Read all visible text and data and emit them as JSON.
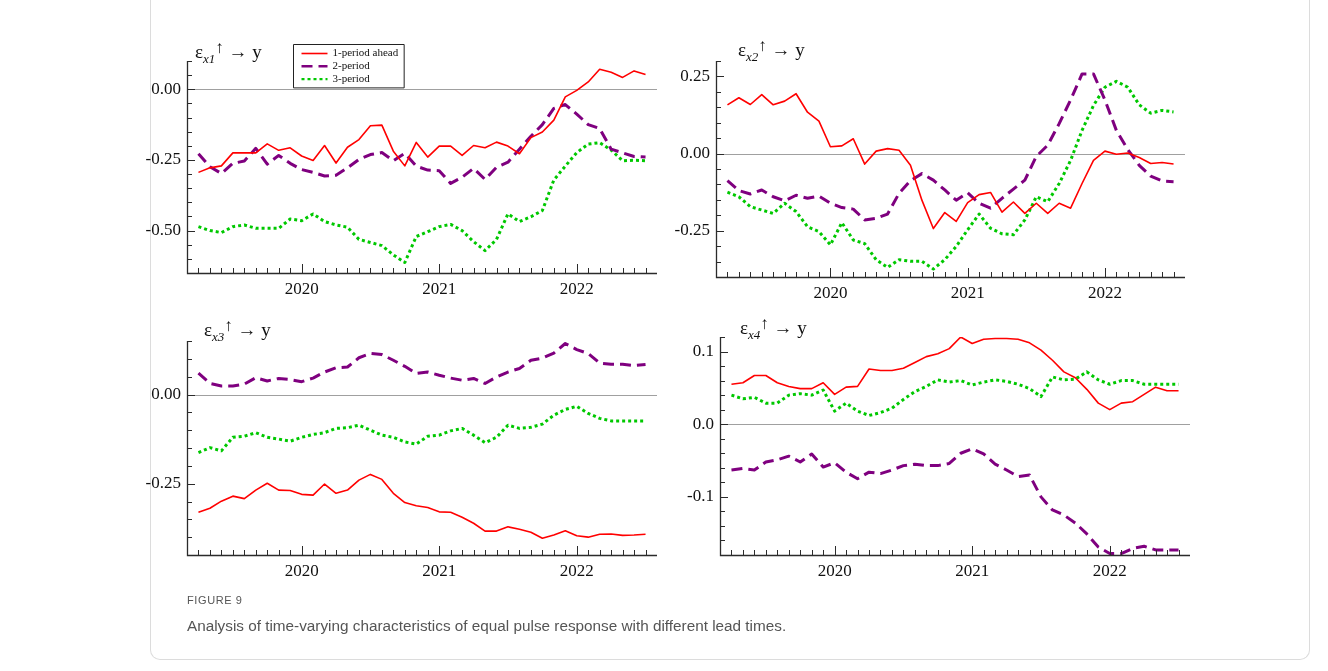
{
  "chart_data": [
    {
      "type": "line",
      "title": "ε$_{x1}$$^{↑}$ → y",
      "legend": "top left",
      "x": [
        "2019-04",
        "2019-05",
        "2019-06",
        "2019-07",
        "2019-08",
        "2019-09",
        "2019-10",
        "2019-11",
        "2019-12",
        "2020-01",
        "2020-02",
        "2020-03",
        "2020-04",
        "2020-05",
        "2020-06",
        "2020-07",
        "2020-08",
        "2020-09",
        "2020-10",
        "2020-11",
        "2020-12",
        "2021-01",
        "2021-02",
        "2021-03",
        "2021-04",
        "2021-05",
        "2021-06",
        "2021-07",
        "2021-08",
        "2021-09",
        "2021-10",
        "2021-11",
        "2021-12",
        "2022-01",
        "2022-02",
        "2022-03",
        "2022-04",
        "2022-05",
        "2022-06",
        "2022-07"
      ],
      "xlim": [
        "2019-03",
        "2022-08"
      ],
      "xticks": [
        {
          "value": "2019-04",
          "label": null
        },
        {
          "value": "2019-05",
          "label": null
        },
        {
          "value": "2019-06",
          "label": null
        },
        {
          "value": "2019-07",
          "label": null
        },
        {
          "value": "2019-08",
          "label": null
        },
        {
          "value": "2019-09",
          "label": null
        },
        {
          "value": "2019-10",
          "label": null
        },
        {
          "value": "2019-11",
          "label": null
        },
        {
          "value": "2019-12",
          "label": null
        },
        "2020",
        {
          "value": "2020-02",
          "label": null
        },
        {
          "value": "2020-03",
          "label": null
        },
        {
          "value": "2020-04",
          "label": null
        },
        {
          "value": "2020-05",
          "label": null
        },
        {
          "value": "2020-06",
          "label": null
        },
        {
          "value": "2020-07",
          "label": null
        },
        {
          "value": "2020-08",
          "label": null
        },
        {
          "value": "2020-09",
          "label": null
        },
        {
          "value": "2020-10",
          "label": null
        },
        {
          "value": "2020-11",
          "label": null
        },
        {
          "value": "2020-12",
          "label": null
        },
        "2021",
        {
          "value": "2021-02",
          "label": null
        },
        {
          "value": "2021-03",
          "label": null
        },
        {
          "value": "2021-04",
          "label": null
        },
        {
          "value": "2021-05",
          "label": null
        },
        {
          "value": "2021-06",
          "label": null
        },
        {
          "value": "2021-07",
          "label": null
        },
        {
          "value": "2021-08",
          "label": null
        },
        {
          "value": "2021-09",
          "label": null
        },
        {
          "value": "2021-10",
          "label": null
        },
        {
          "value": "2021-11",
          "label": null
        },
        {
          "value": "2021-12",
          "label": null
        },
        "2022",
        {
          "value": "2022-02",
          "label": null
        },
        {
          "value": "2022-03",
          "label": null
        },
        {
          "value": "2022-04",
          "label": null
        },
        {
          "value": "2022-05",
          "label": null
        },
        {
          "value": "2022-06",
          "label": null
        },
        {
          "value": "2022-07",
          "label": null
        }
      ],
      "ylim": [
        -0.65,
        0.1
      ],
      "yticks": [
        {
          "value": 0.1,
          "label": null
        },
        {
          "value": 0.05,
          "label": null
        },
        {
          "value": 0,
          "label": "0.00"
        },
        {
          "value": -0.05,
          "label": null
        },
        {
          "value": -0.1,
          "label": null
        },
        {
          "value": -0.15,
          "label": null
        },
        {
          "value": -0.2,
          "label": null
        },
        {
          "value": -0.25,
          "label": "-0.25"
        },
        {
          "value": -0.3,
          "label": null
        },
        {
          "value": -0.35,
          "label": null
        },
        {
          "value": -0.4,
          "label": null
        },
        {
          "value": -0.45,
          "label": null
        },
        {
          "value": -0.5,
          "label": "-0.50"
        },
        {
          "value": -0.55,
          "label": null
        },
        {
          "value": -0.6,
          "label": null
        }
      ],
      "ref_lines": [
        {
          "axis": "y",
          "value": 0,
          "color": "#a0a0a0"
        }
      ],
      "series": [
        {
          "name": "1-period ahead",
          "color": "#ff0000",
          "line_style": "solid",
          "values": [
            -0.294,
            -0.278,
            -0.271,
            -0.225,
            -0.225,
            -0.225,
            -0.193,
            -0.216,
            -0.207,
            -0.236,
            -0.252,
            -0.199,
            -0.261,
            -0.205,
            -0.178,
            -0.129,
            -0.127,
            -0.219,
            -0.271,
            -0.188,
            -0.24,
            -0.201,
            -0.201,
            -0.234,
            -0.199,
            -0.207,
            -0.187,
            -0.201,
            -0.228,
            -0.171,
            -0.151,
            -0.109,
            -0.027,
            -0.004,
            0.026,
            0.071,
            0.06,
            0.042,
            0.065,
            0.052
          ]
        },
        {
          "name": "2-period",
          "color": "#7f007f",
          "line_style": "dashed",
          "values": [
            -0.228,
            -0.274,
            -0.298,
            -0.262,
            -0.254,
            -0.209,
            -0.265,
            -0.234,
            -0.262,
            -0.284,
            -0.294,
            -0.307,
            -0.304,
            -0.278,
            -0.248,
            -0.231,
            -0.224,
            -0.253,
            -0.227,
            -0.272,
            -0.286,
            -0.288,
            -0.333,
            -0.311,
            -0.28,
            -0.319,
            -0.276,
            -0.258,
            -0.212,
            -0.166,
            -0.125,
            -0.068,
            -0.054,
            -0.088,
            -0.125,
            -0.139,
            -0.212,
            -0.225,
            -0.238,
            -0.24
          ]
        },
        {
          "name": "3-period",
          "color": "#00c800",
          "line_style": "dotted",
          "values": [
            -0.486,
            -0.5,
            -0.507,
            -0.486,
            -0.48,
            -0.492,
            -0.492,
            -0.492,
            -0.459,
            -0.465,
            -0.441,
            -0.468,
            -0.48,
            -0.488,
            -0.531,
            -0.542,
            -0.553,
            -0.586,
            -0.613,
            -0.521,
            -0.504,
            -0.486,
            -0.478,
            -0.5,
            -0.539,
            -0.571,
            -0.531,
            -0.441,
            -0.468,
            -0.451,
            -0.429,
            -0.321,
            -0.272,
            -0.224,
            -0.194,
            -0.189,
            -0.215,
            -0.253,
            -0.251,
            -0.253
          ]
        }
      ]
    },
    {
      "type": "line",
      "title": "ε$_{x2}$$^{↑}$ → y",
      "x": [
        "2019-04",
        "2019-05",
        "2019-06",
        "2019-07",
        "2019-08",
        "2019-09",
        "2019-10",
        "2019-11",
        "2019-12",
        "2020-01",
        "2020-02",
        "2020-03",
        "2020-04",
        "2020-05",
        "2020-06",
        "2020-07",
        "2020-08",
        "2020-09",
        "2020-10",
        "2020-11",
        "2020-12",
        "2021-01",
        "2021-02",
        "2021-03",
        "2021-04",
        "2021-05",
        "2021-06",
        "2021-07",
        "2021-08",
        "2021-09",
        "2021-10",
        "2021-11",
        "2021-12",
        "2022-01",
        "2022-02",
        "2022-03",
        "2022-04",
        "2022-05",
        "2022-06",
        "2022-07"
      ],
      "xlim": [
        "2019-03",
        "2022-08"
      ],
      "xticks": [
        {
          "value": "2019-04",
          "label": null
        },
        {
          "value": "2019-05",
          "label": null
        },
        {
          "value": "2019-06",
          "label": null
        },
        {
          "value": "2019-07",
          "label": null
        },
        {
          "value": "2019-08",
          "label": null
        },
        {
          "value": "2019-09",
          "label": null
        },
        {
          "value": "2019-10",
          "label": null
        },
        {
          "value": "2019-11",
          "label": null
        },
        {
          "value": "2019-12",
          "label": null
        },
        "2020",
        {
          "value": "2020-02",
          "label": null
        },
        {
          "value": "2020-03",
          "label": null
        },
        {
          "value": "2020-04",
          "label": null
        },
        {
          "value": "2020-05",
          "label": null
        },
        {
          "value": "2020-06",
          "label": null
        },
        {
          "value": "2020-07",
          "label": null
        },
        {
          "value": "2020-08",
          "label": null
        },
        {
          "value": "2020-09",
          "label": null
        },
        {
          "value": "2020-10",
          "label": null
        },
        {
          "value": "2020-11",
          "label": null
        },
        {
          "value": "2020-12",
          "label": null
        },
        "2021",
        {
          "value": "2021-02",
          "label": null
        },
        {
          "value": "2021-03",
          "label": null
        },
        {
          "value": "2021-04",
          "label": null
        },
        {
          "value": "2021-05",
          "label": null
        },
        {
          "value": "2021-06",
          "label": null
        },
        {
          "value": "2021-07",
          "label": null
        },
        {
          "value": "2021-08",
          "label": null
        },
        {
          "value": "2021-09",
          "label": null
        },
        {
          "value": "2021-10",
          "label": null
        },
        {
          "value": "2021-11",
          "label": null
        },
        {
          "value": "2021-12",
          "label": null
        },
        "2022",
        {
          "value": "2022-02",
          "label": null
        },
        {
          "value": "2022-03",
          "label": null
        },
        {
          "value": "2022-04",
          "label": null
        },
        {
          "value": "2022-05",
          "label": null
        },
        {
          "value": "2022-06",
          "label": null
        },
        {
          "value": "2022-07",
          "label": null
        }
      ],
      "ylim": [
        -0.4,
        0.3
      ],
      "yticks": [
        {
          "value": 0.3,
          "label": null
        },
        {
          "value": 0.25,
          "label": "0.25"
        },
        {
          "value": 0.2,
          "label": null
        },
        {
          "value": 0.15,
          "label": null
        },
        {
          "value": 0.1,
          "label": null
        },
        {
          "value": 0.05,
          "label": null
        },
        {
          "value": 0,
          "label": "0.00"
        },
        {
          "value": -0.05,
          "label": null
        },
        {
          "value": -0.1,
          "label": null
        },
        {
          "value": -0.15,
          "label": null
        },
        {
          "value": -0.2,
          "label": null
        },
        {
          "value": -0.25,
          "label": "-0.25"
        },
        {
          "value": -0.3,
          "label": null
        },
        {
          "value": -0.35,
          "label": null
        }
      ],
      "ref_lines": [
        {
          "axis": "y",
          "value": 0,
          "color": "#a0a0a0"
        }
      ],
      "series": [
        {
          "color": "#ff0000",
          "line_style": "solid",
          "values": [
            0.158,
            0.181,
            0.159,
            0.191,
            0.158,
            0.17,
            0.194,
            0.134,
            0.105,
            0.022,
            0.025,
            0.048,
            -0.034,
            0.008,
            0.016,
            0.011,
            -0.038,
            -0.151,
            -0.243,
            -0.191,
            -0.22,
            -0.159,
            -0.133,
            -0.126,
            -0.19,
            -0.157,
            -0.194,
            -0.161,
            -0.194,
            -0.161,
            -0.177,
            -0.097,
            -0.022,
            0.008,
            -0.002,
            0.002,
            -0.013,
            -0.032,
            -0.029,
            -0.034
          ]
        },
        {
          "color": "#7f007f",
          "line_style": "dashed",
          "values": [
            -0.088,
            -0.12,
            -0.131,
            -0.118,
            -0.14,
            -0.153,
            -0.135,
            -0.145,
            -0.138,
            -0.161,
            -0.175,
            -0.18,
            -0.215,
            -0.21,
            -0.196,
            -0.129,
            -0.088,
            -0.065,
            -0.086,
            -0.118,
            -0.151,
            -0.127,
            -0.161,
            -0.177,
            -0.145,
            -0.115,
            -0.086,
            -0.009,
            0.027,
            0.097,
            0.174,
            0.258,
            0.258,
            0.174,
            0.075,
            0.013,
            -0.038,
            -0.073,
            -0.089,
            -0.091
          ]
        },
        {
          "color": "#00c800",
          "line_style": "dotted",
          "values": [
            -0.125,
            -0.14,
            -0.172,
            -0.183,
            -0.194,
            -0.161,
            -0.188,
            -0.237,
            -0.253,
            -0.296,
            -0.224,
            -0.28,
            -0.292,
            -0.344,
            -0.369,
            -0.344,
            -0.349,
            -0.349,
            -0.374,
            -0.344,
            -0.301,
            -0.247,
            -0.196,
            -0.242,
            -0.26,
            -0.263,
            -0.215,
            -0.14,
            -0.156,
            -0.097,
            -0.022,
            0.075,
            0.156,
            0.215,
            0.234,
            0.215,
            0.158,
            0.131,
            0.14,
            0.135
          ]
        }
      ]
    },
    {
      "type": "line",
      "title": "ε$_{x3}$$^{↑}$ → y",
      "x": [
        "2019-04",
        "2019-05",
        "2019-06",
        "2019-07",
        "2019-08",
        "2019-09",
        "2019-10",
        "2019-11",
        "2019-12",
        "2020-01",
        "2020-02",
        "2020-03",
        "2020-04",
        "2020-05",
        "2020-06",
        "2020-07",
        "2020-08",
        "2020-09",
        "2020-10",
        "2020-11",
        "2020-12",
        "2021-01",
        "2021-02",
        "2021-03",
        "2021-04",
        "2021-05",
        "2021-06",
        "2021-07",
        "2021-08",
        "2021-09",
        "2021-10",
        "2021-11",
        "2021-12",
        "2022-01",
        "2022-02",
        "2022-03",
        "2022-04",
        "2022-05",
        "2022-06",
        "2022-07"
      ],
      "xlim": [
        "2019-03",
        "2022-08"
      ],
      "xticks": [
        {
          "value": "2019-04",
          "label": null
        },
        {
          "value": "2019-05",
          "label": null
        },
        {
          "value": "2019-06",
          "label": null
        },
        {
          "value": "2019-07",
          "label": null
        },
        {
          "value": "2019-08",
          "label": null
        },
        {
          "value": "2019-09",
          "label": null
        },
        {
          "value": "2019-10",
          "label": null
        },
        {
          "value": "2019-11",
          "label": null
        },
        {
          "value": "2019-12",
          "label": null
        },
        "2020",
        {
          "value": "2020-02",
          "label": null
        },
        {
          "value": "2020-03",
          "label": null
        },
        {
          "value": "2020-04",
          "label": null
        },
        {
          "value": "2020-05",
          "label": null
        },
        {
          "value": "2020-06",
          "label": null
        },
        {
          "value": "2020-07",
          "label": null
        },
        {
          "value": "2020-08",
          "label": null
        },
        {
          "value": "2020-09",
          "label": null
        },
        {
          "value": "2020-10",
          "label": null
        },
        {
          "value": "2020-11",
          "label": null
        },
        {
          "value": "2020-12",
          "label": null
        },
        "2021",
        {
          "value": "2021-02",
          "label": null
        },
        {
          "value": "2021-03",
          "label": null
        },
        {
          "value": "2021-04",
          "label": null
        },
        {
          "value": "2021-05",
          "label": null
        },
        {
          "value": "2021-06",
          "label": null
        },
        {
          "value": "2021-07",
          "label": null
        },
        {
          "value": "2021-08",
          "label": null
        },
        {
          "value": "2021-09",
          "label": null
        },
        {
          "value": "2021-10",
          "label": null
        },
        {
          "value": "2021-11",
          "label": null
        },
        {
          "value": "2021-12",
          "label": null
        },
        "2022",
        {
          "value": "2022-02",
          "label": null
        },
        {
          "value": "2022-03",
          "label": null
        },
        {
          "value": "2022-04",
          "label": null
        },
        {
          "value": "2022-05",
          "label": null
        },
        {
          "value": "2022-06",
          "label": null
        },
        {
          "value": "2022-07",
          "label": null
        }
      ],
      "ylim": [
        -0.45,
        0.15
      ],
      "yticks": [
        {
          "value": 0.15,
          "label": null
        },
        {
          "value": 0.1,
          "label": null
        },
        {
          "value": 0.05,
          "label": null
        },
        {
          "value": 0,
          "label": "0.00"
        },
        {
          "value": -0.05,
          "label": null
        },
        {
          "value": -0.1,
          "label": null
        },
        {
          "value": -0.15,
          "label": null
        },
        {
          "value": -0.2,
          "label": null
        },
        {
          "value": -0.25,
          "label": "-0.25"
        },
        {
          "value": -0.3,
          "label": null
        },
        {
          "value": -0.35,
          "label": null
        },
        {
          "value": -0.4,
          "label": null
        }
      ],
      "ref_lines": [
        {
          "axis": "y",
          "value": 0,
          "color": "#a0a0a0"
        }
      ],
      "annotations": [
        "FIGURE 9",
        "Analysis of time-varying characteristics of equal pulse response with different lead times."
      ],
      "series": [
        {
          "color": "#ff0000",
          "line_style": "solid",
          "values": [
            -0.33,
            -0.319,
            -0.299,
            -0.285,
            -0.292,
            -0.268,
            -0.249,
            -0.268,
            -0.269,
            -0.28,
            -0.282,
            -0.251,
            -0.277,
            -0.268,
            -0.24,
            -0.224,
            -0.238,
            -0.277,
            -0.303,
            -0.312,
            -0.317,
            -0.329,
            -0.33,
            -0.344,
            -0.361,
            -0.383,
            -0.383,
            -0.371,
            -0.378,
            -0.386,
            -0.403,
            -0.394,
            -0.382,
            -0.396,
            -0.4,
            -0.392,
            -0.391,
            -0.395,
            -0.394,
            -0.392
          ]
        },
        {
          "color": "#7f007f",
          "line_style": "dashed",
          "values": [
            0.06,
            0.031,
            0.024,
            0.024,
            0.029,
            0.047,
            0.038,
            0.045,
            0.042,
            0.036,
            0.046,
            0.063,
            0.075,
            0.077,
            0.103,
            0.115,
            0.112,
            0.096,
            0.079,
            0.059,
            0.063,
            0.054,
            0.046,
            0.04,
            0.045,
            0.031,
            0.049,
            0.063,
            0.073,
            0.096,
            0.102,
            0.116,
            0.143,
            0.126,
            0.115,
            0.088,
            0.085,
            0.085,
            0.081,
            0.084
          ]
        },
        {
          "color": "#00c800",
          "line_style": "dotted",
          "values": [
            -0.163,
            -0.149,
            -0.158,
            -0.12,
            -0.117,
            -0.107,
            -0.12,
            -0.125,
            -0.131,
            -0.12,
            -0.112,
            -0.107,
            -0.095,
            -0.093,
            -0.086,
            -0.1,
            -0.114,
            -0.12,
            -0.133,
            -0.139,
            -0.117,
            -0.114,
            -0.102,
            -0.095,
            -0.114,
            -0.135,
            -0.12,
            -0.086,
            -0.095,
            -0.092,
            -0.083,
            -0.058,
            -0.042,
            -0.033,
            -0.053,
            -0.067,
            -0.074,
            -0.074,
            -0.074,
            -0.074
          ]
        }
      ]
    },
    {
      "type": "line",
      "title": "ε$_{x4}$$^{↑}$ → y",
      "x": [
        "2019-04",
        "2019-05",
        "2019-06",
        "2019-07",
        "2019-08",
        "2019-09",
        "2019-10",
        "2019-11",
        "2019-12",
        "2020-01",
        "2020-02",
        "2020-03",
        "2020-04",
        "2020-05",
        "2020-06",
        "2020-07",
        "2020-08",
        "2020-09",
        "2020-10",
        "2020-11",
        "2020-12",
        "2021-01",
        "2021-02",
        "2021-03",
        "2021-04",
        "2021-05",
        "2021-06",
        "2021-07",
        "2021-08",
        "2021-09",
        "2021-10",
        "2021-11",
        "2021-12",
        "2022-01",
        "2022-02",
        "2022-03",
        "2022-04",
        "2022-05",
        "2022-06",
        "2022-07"
      ],
      "xlim": [
        "2019-03",
        "2022-08"
      ],
      "xticks": [
        {
          "value": "2019-04",
          "label": null
        },
        {
          "value": "2019-05",
          "label": null
        },
        {
          "value": "2019-06",
          "label": null
        },
        {
          "value": "2019-07",
          "label": null
        },
        {
          "value": "2019-08",
          "label": null
        },
        {
          "value": "2019-09",
          "label": null
        },
        {
          "value": "2019-10",
          "label": null
        },
        {
          "value": "2019-11",
          "label": null
        },
        {
          "value": "2019-12",
          "label": null
        },
        "2020",
        {
          "value": "2020-02",
          "label": null
        },
        {
          "value": "2020-03",
          "label": null
        },
        {
          "value": "2020-04",
          "label": null
        },
        {
          "value": "2020-05",
          "label": null
        },
        {
          "value": "2020-06",
          "label": null
        },
        {
          "value": "2020-07",
          "label": null
        },
        {
          "value": "2020-08",
          "label": null
        },
        {
          "value": "2020-09",
          "label": null
        },
        {
          "value": "2020-10",
          "label": null
        },
        {
          "value": "2020-11",
          "label": null
        },
        {
          "value": "2020-12",
          "label": null
        },
        "2021",
        {
          "value": "2021-02",
          "label": null
        },
        {
          "value": "2021-03",
          "label": null
        },
        {
          "value": "2021-04",
          "label": null
        },
        {
          "value": "2021-05",
          "label": null
        },
        {
          "value": "2021-06",
          "label": null
        },
        {
          "value": "2021-07",
          "label": null
        },
        {
          "value": "2021-08",
          "label": null
        },
        {
          "value": "2021-09",
          "label": null
        },
        {
          "value": "2021-10",
          "label": null
        },
        {
          "value": "2021-11",
          "label": null
        },
        {
          "value": "2021-12",
          "label": null
        },
        "2022",
        {
          "value": "2022-02",
          "label": null
        },
        {
          "value": "2022-03",
          "label": null
        },
        {
          "value": "2022-04",
          "label": null
        },
        {
          "value": "2022-05",
          "label": null
        },
        {
          "value": "2022-06",
          "label": null
        },
        {
          "value": "2022-07",
          "label": null
        }
      ],
      "ylim": [
        -0.18,
        0.12
      ],
      "yticks": [
        {
          "value": 0.12,
          "label": null
        },
        0.1,
        {
          "value": 0.08,
          "label": null
        },
        {
          "value": 0.06,
          "label": null
        },
        {
          "value": 0.04,
          "label": null
        },
        {
          "value": 0.02,
          "label": null
        },
        {
          "value": 0,
          "label": "0.0"
        },
        {
          "value": -0.02,
          "label": null
        },
        {
          "value": -0.04,
          "label": null
        },
        {
          "value": -0.06,
          "label": null
        },
        {
          "value": -0.08,
          "label": null
        },
        -0.1,
        {
          "value": -0.12,
          "label": null
        },
        {
          "value": -0.14,
          "label": null
        },
        {
          "value": -0.16,
          "label": null
        }
      ],
      "ref_lines": [
        {
          "axis": "y",
          "value": 0,
          "color": "#a0a0a0"
        }
      ],
      "series": [
        {
          "color": "#ff0000",
          "line_style": "solid",
          "values": [
            0.055,
            0.057,
            0.067,
            0.067,
            0.057,
            0.052,
            0.049,
            0.049,
            0.057,
            0.041,
            0.051,
            0.052,
            0.076,
            0.074,
            0.074,
            0.077,
            0.085,
            0.093,
            0.097,
            0.104,
            0.12,
            0.111,
            0.117,
            0.118,
            0.118,
            0.117,
            0.112,
            0.102,
            0.088,
            0.072,
            0.064,
            0.048,
            0.029,
            0.02,
            0.029,
            0.031,
            0.041,
            0.051,
            0.046,
            0.046
          ]
        },
        {
          "color": "#7f007f",
          "line_style": "dashed",
          "values": [
            -0.063,
            -0.061,
            -0.063,
            -0.052,
            -0.049,
            -0.044,
            -0.052,
            -0.041,
            -0.059,
            -0.053,
            -0.066,
            -0.075,
            -0.066,
            -0.068,
            -0.063,
            -0.057,
            -0.055,
            -0.057,
            -0.057,
            -0.054,
            -0.04,
            -0.034,
            -0.041,
            -0.055,
            -0.063,
            -0.072,
            -0.07,
            -0.1,
            -0.118,
            -0.125,
            -0.136,
            -0.151,
            -0.169,
            -0.178,
            -0.178,
            -0.171,
            -0.168,
            -0.173,
            -0.173,
            -0.173
          ]
        },
        {
          "color": "#00c800",
          "line_style": "dotted",
          "values": [
            0.04,
            0.035,
            0.037,
            0.029,
            0.029,
            0.04,
            0.042,
            0.04,
            0.047,
            0.018,
            0.029,
            0.018,
            0.012,
            0.016,
            0.022,
            0.034,
            0.045,
            0.052,
            0.061,
            0.058,
            0.06,
            0.054,
            0.058,
            0.061,
            0.059,
            0.055,
            0.049,
            0.038,
            0.065,
            0.061,
            0.062,
            0.072,
            0.061,
            0.055,
            0.06,
            0.06,
            0.055,
            0.055,
            0.055,
            0.055
          ]
        }
      ]
    }
  ]
}
